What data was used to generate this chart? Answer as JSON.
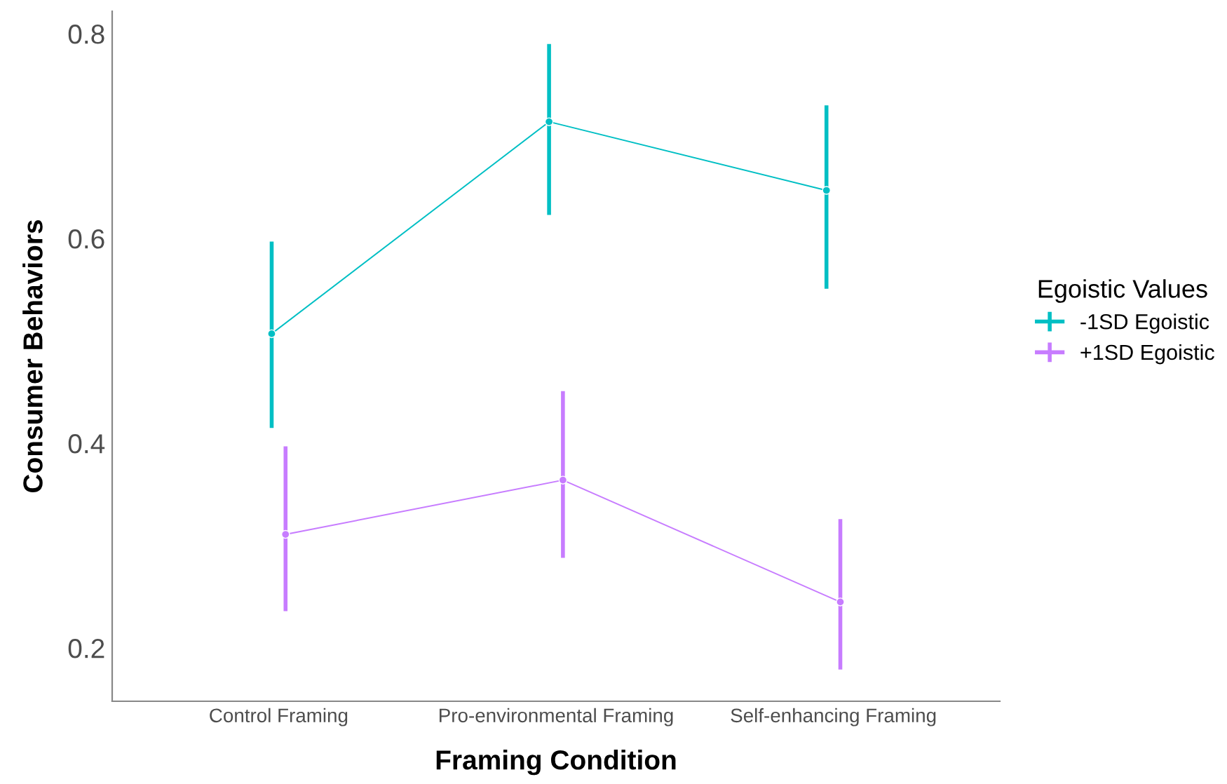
{
  "chart_data": {
    "type": "line",
    "xlabel": "Framing Condition",
    "ylabel": "Consumer Behaviors",
    "legend_title": "Egoistic Values",
    "categories": [
      "Control Framing",
      "Pro-environmental Framing",
      "Self-enhancing Framing"
    ],
    "series": [
      {
        "name": "-1SD Egoistic",
        "color": "#00bfc4",
        "values": [
          0.507,
          0.714,
          0.647
        ],
        "errors": [
          [
            0.415,
            0.597
          ],
          [
            0.623,
            0.79
          ],
          [
            0.551,
            0.73
          ]
        ]
      },
      {
        "name": "+1SD Egoistic",
        "color": "#c77cff",
        "values": [
          0.311,
          0.364,
          0.245
        ],
        "errors": [
          [
            0.236,
            0.397
          ],
          [
            0.288,
            0.451
          ],
          [
            0.179,
            0.326
          ]
        ]
      }
    ],
    "ylim": [
      0.148,
      0.822
    ],
    "yticks": [
      0.2,
      0.4,
      0.6,
      0.8
    ],
    "grid": false,
    "legend": "right",
    "marker": "circle",
    "line_style": "solid"
  }
}
